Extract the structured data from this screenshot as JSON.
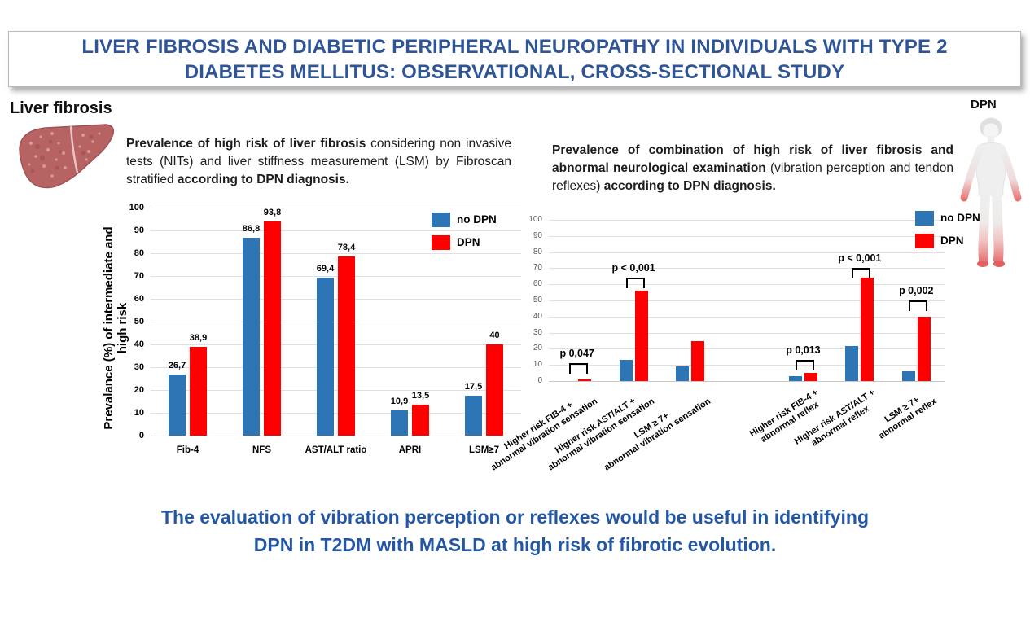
{
  "header": {
    "title_line1": "LIVER FIBROSIS AND DIABETIC PERIPHERAL NEUROPATHY IN INDIVIDUALS WITH TYPE 2",
    "title_line2": "DIABETES MELLITUS: OBSERVATIONAL, CROSS-SECTIONAL STUDY"
  },
  "left_section": {
    "heading": "Liver fibrosis",
    "description_bold1": "Prevalence of high risk of liver fibrosis",
    "description_normal": " considering non invasive tests (NITs) and liver stiffness measurement (LSM) by Fibroscan stratified ",
    "description_bold2": "according to DPN diagnosis."
  },
  "right_section": {
    "heading": "DPN",
    "description_bold1": "Prevalence of combination of high risk of liver fibrosis and abnormal neurological examination",
    "description_normal": " (vibration perception and tendon reflexes) ",
    "description_bold2": "according to DPN diagnosis."
  },
  "conclusion": {
    "line1": "The evaluation of vibration perception or reflexes would be useful in identifying",
    "line2": "DPN in T2DM with MASLD at high risk of fibrotic evolution."
  },
  "colors": {
    "no_dpn_blue": "#2E75B6",
    "dpn_red": "#FF0000",
    "headline_blue": "#2F5597",
    "conclusion_blue": "#2357A5"
  },
  "chart_data": [
    {
      "id": "liver-fibrosis-prevalence",
      "type": "bar",
      "title": "",
      "xlabel": "",
      "ylabel": "Prevalance (%) of intermediate and high risk",
      "ylim": [
        0,
        100
      ],
      "ytick_step": 10,
      "grid": true,
      "legend_position": "top-right",
      "categories": [
        "Fib-4",
        "NFS",
        "AST/ALT ratio",
        "APRI",
        "LSM≥7"
      ],
      "series": [
        {
          "name": "no DPN",
          "color": "#2E75B6",
          "values": [
            26.7,
            86.8,
            69.4,
            10.9,
            17.5
          ],
          "value_labels": [
            "26,7",
            "86,8",
            "69,4",
            "10,9",
            "17,5"
          ]
        },
        {
          "name": "DPN",
          "color": "#FF0000",
          "values": [
            38.9,
            93.8,
            78.4,
            13.5,
            40
          ],
          "value_labels": [
            "38,9",
            "93,8",
            "78,4",
            "13,5",
            "40"
          ]
        }
      ]
    },
    {
      "id": "combination-prevalence",
      "type": "bar",
      "title": "",
      "xlabel": "",
      "ylabel": "",
      "ylim": [
        0,
        100
      ],
      "ytick_step": 10,
      "grid": true,
      "legend_position": "top-right",
      "rotated_x_labels": true,
      "cluster_gap_after_group": 2,
      "categories": [
        "Higher risk FIB-4 +\nabnormal vibration sensation",
        "Higher risk AST/ALT +\nabnormal vibration sensation",
        "LSM ≥ 7+\nabnormal vibration sensation",
        "Higher risk FIB-4 +\nabnormal reflex",
        "Higher risk AST/ALT +\nabnormal reflex",
        "LSM ≥ 7+\nabnormal reflex"
      ],
      "series": [
        {
          "name": "no DPN",
          "color": "#2E75B6",
          "values": [
            0,
            13,
            9,
            3,
            21.5,
            6
          ]
        },
        {
          "name": "DPN",
          "color": "#FF0000",
          "values": [
            1,
            56,
            25,
            5,
            64,
            40
          ]
        }
      ],
      "p_values": [
        {
          "group": 0,
          "label": "p 0,047",
          "bracket_y": 11
        },
        {
          "group": 1,
          "label": "p < 0,001",
          "bracket_y": 64
        },
        {
          "group": 3,
          "label": "p 0,013",
          "bracket_y": 13
        },
        {
          "group": 4,
          "label": "p < 0,001",
          "bracket_y": 70
        },
        {
          "group": 5,
          "label": "p 0,002",
          "bracket_y": 50
        }
      ]
    }
  ]
}
